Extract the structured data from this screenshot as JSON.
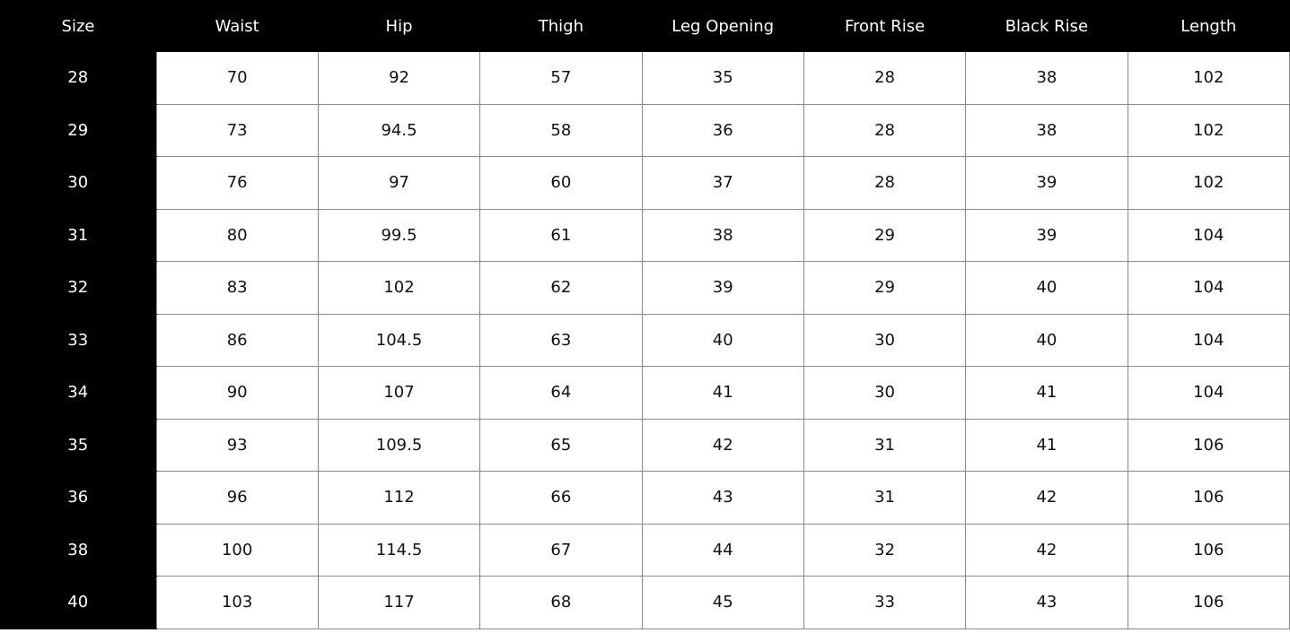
{
  "table": {
    "headers": [
      "Size",
      "Waist",
      "Hip",
      "Thigh",
      "Leg Opening",
      "Front Rise",
      "Black Rise",
      "Length"
    ],
    "rows": [
      [
        "28",
        "70",
        "92",
        "57",
        "35",
        "28",
        "38",
        "102"
      ],
      [
        "29",
        "73",
        "94.5",
        "58",
        "36",
        "28",
        "38",
        "102"
      ],
      [
        "30",
        "76",
        "97",
        "60",
        "37",
        "28",
        "39",
        "102"
      ],
      [
        "31",
        "80",
        "99.5",
        "61",
        "38",
        "29",
        "39",
        "104"
      ],
      [
        "32",
        "83",
        "102",
        "62",
        "39",
        "29",
        "40",
        "104"
      ],
      [
        "33",
        "86",
        "104.5",
        "63",
        "40",
        "30",
        "40",
        "104"
      ],
      [
        "34",
        "90",
        "107",
        "64",
        "41",
        "30",
        "41",
        "104"
      ],
      [
        "35",
        "93",
        "109.5",
        "65",
        "42",
        "31",
        "41",
        "106"
      ],
      [
        "36",
        "96",
        "112",
        "66",
        "43",
        "31",
        "42",
        "106"
      ],
      [
        "38",
        "100",
        "114.5",
        "67",
        "44",
        "32",
        "42",
        "106"
      ],
      [
        "40",
        "103",
        "117",
        "68",
        "45",
        "33",
        "43",
        "106"
      ]
    ],
    "colors": {
      "header_bg": "#000000",
      "header_text": "#ffffff",
      "cell_bg": "#ffffff",
      "border": "#8a8a8a"
    }
  }
}
